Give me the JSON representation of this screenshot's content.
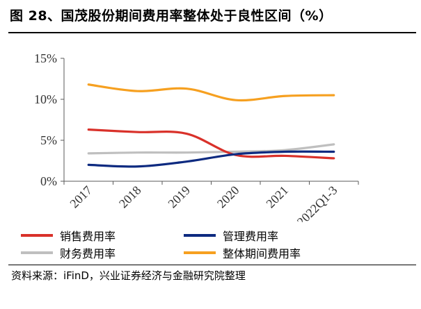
{
  "figure": {
    "title": "图 28、国茂股份期间费用率整体处于良性区间（%）",
    "source": "资料来源：iFinD，兴业证券经济与金融研究院整理"
  },
  "chart_data": {
    "type": "line",
    "categories": [
      "2017",
      "2018",
      "2019",
      "2020",
      "2021",
      "2022Q1-3"
    ],
    "yticks": [
      "0%",
      "5%",
      "10%",
      "15%"
    ],
    "ylim": [
      0,
      15
    ],
    "y_unit": "%",
    "grid": false,
    "legend_position": "bottom",
    "series": [
      {
        "name": "销售费用率",
        "color": "#d9312a",
        "values": [
          6.3,
          6.0,
          5.8,
          3.2,
          3.1,
          2.8
        ]
      },
      {
        "name": "管理费用率",
        "color": "#0d2a80",
        "values": [
          2.0,
          1.8,
          2.4,
          3.3,
          3.6,
          3.6
        ]
      },
      {
        "name": "财务费用率",
        "color": "#bfbfbf",
        "values": [
          3.4,
          3.5,
          3.5,
          3.6,
          3.8,
          4.5
        ]
      },
      {
        "name": "整体期间费用率",
        "color": "#f6a020",
        "values": [
          11.8,
          11.0,
          11.3,
          9.9,
          10.4,
          10.5
        ]
      }
    ]
  }
}
